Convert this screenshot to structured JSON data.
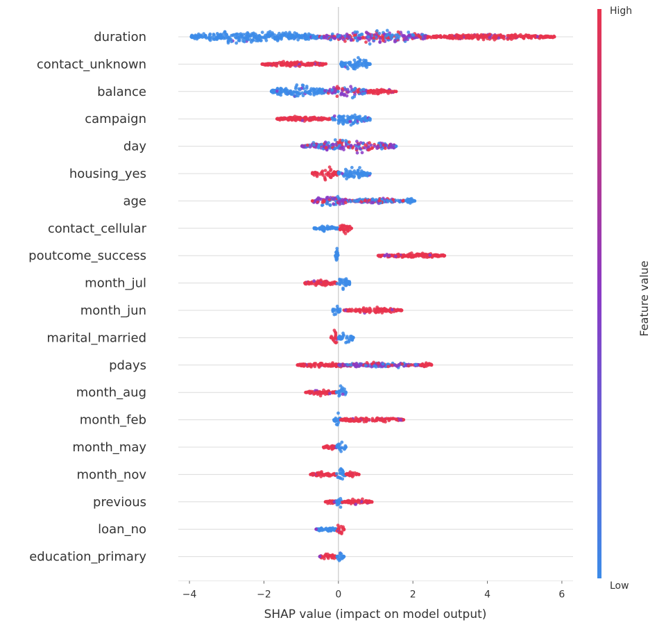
{
  "chart_data": {
    "type": "scatter",
    "subtype": "shap-beeswarm",
    "title": "",
    "xlabel": "SHAP value (impact on model output)",
    "xlim": [
      -4.3,
      6.3
    ],
    "xticks": [
      -4,
      -2,
      0,
      2,
      4,
      6
    ],
    "xtick_labels": [
      "−4",
      "−2",
      "0",
      "2",
      "4",
      "6"
    ],
    "colorbar": {
      "title": "Feature value",
      "high_label": "High",
      "low_label": "Low",
      "high_color": "#e8344e",
      "mid_color": "#8a3bc5",
      "low_color": "#3c8be8"
    },
    "features": [
      {
        "name": "duration",
        "min": -3.95,
        "max": 5.8,
        "segments": [
          {
            "from": -3.95,
            "to": -0.5,
            "color": "low",
            "spread": "wide"
          },
          {
            "from": -0.5,
            "to": 2.4,
            "color": "mix",
            "spread": "wide"
          },
          {
            "from": 2.4,
            "to": 5.8,
            "color": "high",
            "spread": "narrow"
          }
        ]
      },
      {
        "name": "contact_unknown",
        "min": -2.05,
        "max": 0.85,
        "segments": [
          {
            "from": -2.05,
            "to": -0.3,
            "color": "high",
            "spread": "narrow"
          },
          {
            "from": 0.05,
            "to": 0.85,
            "color": "low",
            "spread": "wide"
          }
        ]
      },
      {
        "name": "balance",
        "min": -1.8,
        "max": 1.55,
        "segments": [
          {
            "from": -1.8,
            "to": -0.3,
            "color": "low",
            "spread": "wide"
          },
          {
            "from": -0.3,
            "to": 0.8,
            "color": "mix",
            "spread": "wide"
          },
          {
            "from": 0.8,
            "to": 1.55,
            "color": "high",
            "spread": "narrow"
          }
        ]
      },
      {
        "name": "campaign",
        "min": -1.65,
        "max": 0.85,
        "segments": [
          {
            "from": -1.65,
            "to": -0.2,
            "color": "high",
            "spread": "narrow"
          },
          {
            "from": -0.2,
            "to": 0.85,
            "color": "low",
            "spread": "wide"
          }
        ]
      },
      {
        "name": "day",
        "min": -0.98,
        "max": 1.55,
        "segments": [
          {
            "from": -0.98,
            "to": 1.55,
            "color": "mix",
            "spread": "wide"
          }
        ]
      },
      {
        "name": "housing_yes",
        "min": -0.7,
        "max": 0.85,
        "segments": [
          {
            "from": -0.7,
            "to": 0.0,
            "color": "high",
            "spread": "wide"
          },
          {
            "from": 0.0,
            "to": 0.85,
            "color": "low",
            "spread": "wide"
          }
        ]
      },
      {
        "name": "age",
        "min": -0.7,
        "max": 2.05,
        "segments": [
          {
            "from": -0.7,
            "to": 0.3,
            "color": "mix",
            "spread": "wide"
          },
          {
            "from": 0.3,
            "to": 1.8,
            "color": "lowhigh",
            "spread": "narrow"
          },
          {
            "from": 1.8,
            "to": 2.05,
            "color": "low",
            "spread": "narrow"
          }
        ]
      },
      {
        "name": "contact_cellular",
        "min": -0.65,
        "max": 0.35,
        "segments": [
          {
            "from": -0.65,
            "to": 0.0,
            "color": "low",
            "spread": "narrow"
          },
          {
            "from": 0.0,
            "to": 0.35,
            "color": "high",
            "spread": "wide"
          }
        ]
      },
      {
        "name": "poutcome_success",
        "min": -0.08,
        "max": 2.85,
        "segments": [
          {
            "from": -0.08,
            "to": 0.0,
            "color": "low",
            "spread": "wide"
          },
          {
            "from": 1.05,
            "to": 2.85,
            "color": "high",
            "spread": "narrow"
          }
        ]
      },
      {
        "name": "month_jul",
        "min": -0.9,
        "max": 0.3,
        "segments": [
          {
            "from": -0.9,
            "to": -0.05,
            "color": "high",
            "spread": "narrow"
          },
          {
            "from": -0.05,
            "to": 0.3,
            "color": "low",
            "spread": "wide"
          }
        ]
      },
      {
        "name": "month_jun",
        "min": -0.15,
        "max": 1.7,
        "segments": [
          {
            "from": -0.15,
            "to": 0.05,
            "color": "low",
            "spread": "wide"
          },
          {
            "from": 0.15,
            "to": 1.7,
            "color": "high",
            "spread": "narrow"
          }
        ]
      },
      {
        "name": "marital_married",
        "min": -0.2,
        "max": 0.4,
        "segments": [
          {
            "from": -0.2,
            "to": 0.0,
            "color": "high",
            "spread": "wide"
          },
          {
            "from": 0.0,
            "to": 0.4,
            "color": "low",
            "spread": "wide"
          }
        ]
      },
      {
        "name": "pdays",
        "min": -1.1,
        "max": 2.5,
        "segments": [
          {
            "from": -1.1,
            "to": 0.3,
            "color": "high",
            "spread": "narrow"
          },
          {
            "from": 0.0,
            "to": 2.2,
            "color": "mix",
            "spread": "narrow"
          },
          {
            "from": 2.2,
            "to": 2.5,
            "color": "high",
            "spread": "narrow"
          }
        ]
      },
      {
        "name": "month_aug",
        "min": -0.88,
        "max": 0.2,
        "segments": [
          {
            "from": -0.88,
            "to": -0.05,
            "color": "high",
            "spread": "narrow"
          },
          {
            "from": -0.05,
            "to": 0.2,
            "color": "low",
            "spread": "wide"
          }
        ]
      },
      {
        "name": "month_feb",
        "min": -0.12,
        "max": 1.75,
        "segments": [
          {
            "from": -0.12,
            "to": 0.05,
            "color": "low",
            "spread": "wide"
          },
          {
            "from": 0.05,
            "to": 1.75,
            "color": "high",
            "spread": "narrow"
          }
        ]
      },
      {
        "name": "month_may",
        "min": -0.4,
        "max": 0.2,
        "segments": [
          {
            "from": -0.4,
            "to": -0.05,
            "color": "high",
            "spread": "narrow"
          },
          {
            "from": -0.05,
            "to": 0.2,
            "color": "low",
            "spread": "wide"
          }
        ]
      },
      {
        "name": "month_nov",
        "min": -0.75,
        "max": 0.55,
        "segments": [
          {
            "from": -0.75,
            "to": -0.05,
            "color": "high",
            "spread": "narrow"
          },
          {
            "from": -0.05,
            "to": 0.2,
            "color": "low",
            "spread": "wide"
          },
          {
            "from": 0.2,
            "to": 0.55,
            "color": "high",
            "spread": "narrow"
          }
        ]
      },
      {
        "name": "previous",
        "min": -0.35,
        "max": 0.9,
        "segments": [
          {
            "from": -0.35,
            "to": -0.05,
            "color": "high",
            "spread": "narrow"
          },
          {
            "from": -0.05,
            "to": 0.1,
            "color": "low",
            "spread": "wide"
          },
          {
            "from": 0.1,
            "to": 0.9,
            "color": "high",
            "spread": "narrow"
          }
        ]
      },
      {
        "name": "loan_no",
        "min": -0.6,
        "max": 0.15,
        "segments": [
          {
            "from": -0.6,
            "to": -0.05,
            "color": "low",
            "spread": "narrow"
          },
          {
            "from": -0.05,
            "to": 0.15,
            "color": "high",
            "spread": "wide"
          }
        ]
      },
      {
        "name": "education_primary",
        "min": -0.5,
        "max": 0.15,
        "segments": [
          {
            "from": -0.5,
            "to": -0.05,
            "color": "high",
            "spread": "narrow"
          },
          {
            "from": -0.05,
            "to": 0.15,
            "color": "low",
            "spread": "wide"
          }
        ]
      }
    ]
  }
}
